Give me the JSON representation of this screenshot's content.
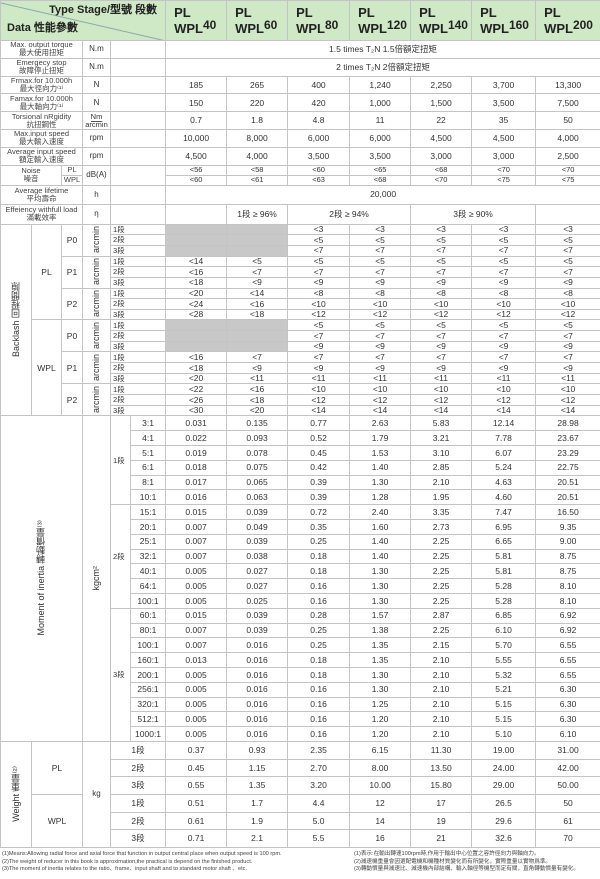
{
  "header": {
    "corner_top": "Type Stage/型號 段數",
    "corner_bottom": "Data 性能參數",
    "prefix_pl": "PL",
    "prefix_wpl": "WPL",
    "models": [
      "40",
      "60",
      "80",
      "120",
      "140",
      "160",
      "200"
    ],
    "bg_color": "#cfe8c6"
  },
  "specs": [
    {
      "en": "Max. output torque",
      "cn": "最大使用扭矩",
      "unit": "N.m",
      "span": "1.5 times T₂N      1.5倍額定扭矩"
    },
    {
      "en": "Emergecy stop",
      "cn": "故障停止扭矩",
      "unit": "N.m",
      "span": "2 times T₂N      2倍額定扭矩"
    },
    {
      "en": "Frmax.for 10.000h",
      "cn": "最大徑向力⁽¹⁾",
      "unit": "N",
      "values": [
        "185",
        "265",
        "400",
        "1,240",
        "2,250",
        "3,700",
        "13,300"
      ]
    },
    {
      "en": "Famax.for 10.000h",
      "cn": "最大軸向力⁽¹⁾",
      "unit": "N",
      "values": [
        "150",
        "220",
        "420",
        "1,000",
        "1,500",
        "3,500",
        "7,500"
      ]
    },
    {
      "en": "Torsional nRgidity",
      "cn": "抗扭鋼性",
      "unit": "Nm/arcmin",
      "values": [
        "0.7",
        "1.8",
        "4.8",
        "11",
        "22",
        "35",
        "50"
      ]
    },
    {
      "en": "Max.input speed",
      "cn": "最大輸入速度",
      "unit": "rpm",
      "values": [
        "10,000",
        "8,000",
        "6,000",
        "6,000",
        "4,500",
        "4,500",
        "4,000"
      ]
    },
    {
      "en": "Average input speed",
      "cn": "額定輸入速度",
      "unit": "rpm",
      "values": [
        "4,500",
        "4,000",
        "3,500",
        "3,500",
        "3,000",
        "3,000",
        "2,500"
      ]
    }
  ],
  "noise": {
    "en": "Noise",
    "cn": "噪音",
    "unit": "dB(A)",
    "rows": [
      {
        "type": "PL",
        "values": [
          "<56",
          "<58",
          "<60",
          "<65",
          "<68",
          "<70",
          "<70"
        ]
      },
      {
        "type": "WPL",
        "values": [
          "<60",
          "<61",
          "<63",
          "<68",
          "<70",
          "<75",
          "<75"
        ]
      }
    ]
  },
  "lifetime": {
    "en": "Average lifetime",
    "cn": "平均壽命",
    "unit": "h",
    "value": "20,000"
  },
  "efficiency": {
    "en": "Effeiency withfull load",
    "cn": "滿載效率",
    "unit": "η",
    "stage1": "1段 ≥ 96%",
    "stage2": "2段 ≥ 94%",
    "stage3": "3段 ≥ 90%"
  },
  "backlash": {
    "label": "Backlash  回程間隙",
    "unit": "arcmin",
    "stages": [
      "1段",
      "2段",
      "3段"
    ],
    "groups": [
      {
        "type": "PL",
        "precisions": [
          {
            "name": "P0",
            "rows": [
              [
                null,
                null,
                "<3",
                "<3",
                "<3",
                "<3",
                "<3"
              ],
              [
                null,
                null,
                "<5",
                "<5",
                "<5",
                "<5",
                "<5"
              ],
              [
                null,
                null,
                "<7",
                "<7",
                "<7",
                "<7",
                "<7"
              ]
            ]
          },
          {
            "name": "P1",
            "rows": [
              [
                "<14",
                "<5",
                "<5",
                "<5",
                "<5",
                "<5",
                "<5"
              ],
              [
                "<16",
                "<7",
                "<7",
                "<7",
                "<7",
                "<7",
                "<7"
              ],
              [
                "<18",
                "<9",
                "<9",
                "<9",
                "<9",
                "<9",
                "<9"
              ]
            ]
          },
          {
            "name": "P2",
            "rows": [
              [
                "<20",
                "<14",
                "<8",
                "<8",
                "<8",
                "<8",
                "<8"
              ],
              [
                "<24",
                "<16",
                "<10",
                "<10",
                "<10",
                "<10",
                "<10"
              ],
              [
                "<28",
                "<18",
                "<12",
                "<12",
                "<12",
                "<12",
                "<12"
              ]
            ]
          }
        ]
      },
      {
        "type": "WPL",
        "precisions": [
          {
            "name": "P0",
            "rows": [
              [
                null,
                null,
                "<5",
                "<5",
                "<5",
                "<5",
                "<5"
              ],
              [
                null,
                null,
                "<7",
                "<7",
                "<7",
                "<7",
                "<7"
              ],
              [
                null,
                null,
                "<9",
                "<9",
                "<9",
                "<9",
                "<9"
              ]
            ]
          },
          {
            "name": "P1",
            "rows": [
              [
                "<16",
                "<7",
                "<7",
                "<7",
                "<7",
                "<7",
                "<7"
              ],
              [
                "<18",
                "<9",
                "<9",
                "<9",
                "<9",
                "<9",
                "<9"
              ],
              [
                "<20",
                "<11",
                "<11",
                "<11",
                "<11",
                "<11",
                "<11"
              ]
            ]
          },
          {
            "name": "P2",
            "rows": [
              [
                "<22",
                "<16",
                "<10",
                "<10",
                "<10",
                "<10",
                "<10"
              ],
              [
                "<26",
                "<18",
                "<12",
                "<12",
                "<12",
                "<12",
                "<12"
              ],
              [
                "<30",
                "<20",
                "<14",
                "<14",
                "<14",
                "<14",
                "<14"
              ]
            ]
          }
        ]
      }
    ]
  },
  "inertia": {
    "label": "Moment of inertia  轉動慣量⁽³⁾",
    "unit": "kgcm²",
    "stages": [
      {
        "stage": "1段",
        "rows": [
          {
            "ratio": "3:1",
            "values": [
              "0.031",
              "0.135",
              "0.77",
              "2.63",
              "5.83",
              "12.14",
              "28.98"
            ]
          },
          {
            "ratio": "4:1",
            "values": [
              "0.022",
              "0.093",
              "0.52",
              "1.79",
              "3.21",
              "7.78",
              "23.67"
            ]
          },
          {
            "ratio": "5:1",
            "values": [
              "0.019",
              "0.078",
              "0.45",
              "1.53",
              "3.10",
              "6.07",
              "23.29"
            ]
          },
          {
            "ratio": "6:1",
            "values": [
              "0.018",
              "0.075",
              "0.42",
              "1.40",
              "2.85",
              "5.24",
              "22.75"
            ]
          },
          {
            "ratio": "8:1",
            "values": [
              "0.017",
              "0.065",
              "0.39",
              "1.30",
              "2.10",
              "4.63",
              "20.51"
            ]
          },
          {
            "ratio": "10:1",
            "values": [
              "0.016",
              "0.063",
              "0.39",
              "1.28",
              "1.95",
              "4.60",
              "20.51"
            ]
          }
        ]
      },
      {
        "stage": "2段",
        "rows": [
          {
            "ratio": "15:1",
            "values": [
              "0.015",
              "0.039",
              "0.72",
              "2.40",
              "3.35",
              "7.47",
              "16.50"
            ]
          },
          {
            "ratio": "20:1",
            "values": [
              "0.007",
              "0.049",
              "0.35",
              "1.60",
              "2.73",
              "6.95",
              "9.35"
            ]
          },
          {
            "ratio": "25:1",
            "values": [
              "0.007",
              "0.039",
              "0.25",
              "1.40",
              "2.25",
              "6.65",
              "9.00"
            ]
          },
          {
            "ratio": "32:1",
            "values": [
              "0.007",
              "0.038",
              "0.18",
              "1.40",
              "2.25",
              "5.81",
              "8.75"
            ]
          },
          {
            "ratio": "40:1",
            "values": [
              "0.005",
              "0.027",
              "0.18",
              "1.30",
              "2.25",
              "5.81",
              "8.75"
            ]
          },
          {
            "ratio": "64:1",
            "values": [
              "0.005",
              "0.027",
              "0.16",
              "1.30",
              "2.25",
              "5.28",
              "8.10"
            ]
          },
          {
            "ratio": "100:1",
            "values": [
              "0.005",
              "0.025",
              "0.16",
              "1.30",
              "2.25",
              "5.28",
              "8.10"
            ]
          }
        ]
      },
      {
        "stage": "3段",
        "rows": [
          {
            "ratio": "60:1",
            "values": [
              "0.015",
              "0.039",
              "0.28",
              "1.57",
              "2.87",
              "6.85",
              "6.92"
            ]
          },
          {
            "ratio": "80:1",
            "values": [
              "0.007",
              "0.039",
              "0.25",
              "1.38",
              "2.25",
              "6.10",
              "6.92"
            ]
          },
          {
            "ratio": "100:1",
            "values": [
              "0.007",
              "0.016",
              "0.25",
              "1.35",
              "2.15",
              "5.70",
              "6.55"
            ]
          },
          {
            "ratio": "160:1",
            "values": [
              "0.013",
              "0.016",
              "0.18",
              "1.35",
              "2.10",
              "5.55",
              "6.55"
            ]
          },
          {
            "ratio": "200:1",
            "values": [
              "0.005",
              "0.016",
              "0.18",
              "1.30",
              "2.10",
              "5.32",
              "6.55"
            ]
          },
          {
            "ratio": "256:1",
            "values": [
              "0.005",
              "0.016",
              "0.16",
              "1.30",
              "2.10",
              "5.21",
              "6.30"
            ]
          },
          {
            "ratio": "320:1",
            "values": [
              "0.005",
              "0.016",
              "0.16",
              "1.25",
              "2.10",
              "5.15",
              "6.30"
            ]
          },
          {
            "ratio": "512:1",
            "values": [
              "0.005",
              "0.016",
              "0.16",
              "1.20",
              "2.10",
              "5.15",
              "6.30"
            ]
          },
          {
            "ratio": "1000:1",
            "values": [
              "0.005",
              "0.016",
              "0.16",
              "1.20",
              "2.10",
              "5.10",
              "6.10"
            ]
          }
        ]
      }
    ]
  },
  "weight": {
    "label": "Weight  重量⁽²⁾",
    "unit": "kg",
    "groups": [
      {
        "type": "PL",
        "rows": [
          {
            "stage": "1段",
            "values": [
              "0.37",
              "0.93",
              "2.35",
              "6.15",
              "11.30",
              "19.00",
              "31.00"
            ]
          },
          {
            "stage": "2段",
            "values": [
              "0.45",
              "1.15",
              "2.70",
              "8.00",
              "13.50",
              "24.00",
              "42.00"
            ]
          },
          {
            "stage": "3段",
            "values": [
              "0.55",
              "1.35",
              "3.20",
              "10.00",
              "15.80",
              "29.00",
              "50.00"
            ]
          }
        ]
      },
      {
        "type": "WPL",
        "rows": [
          {
            "stage": "1段",
            "values": [
              "0.51",
              "1.7",
              "4.4",
              "12",
              "17",
              "26.5",
              "50"
            ]
          },
          {
            "stage": "2段",
            "values": [
              "0.61",
              "1.9",
              "5.0",
              "14",
              "19",
              "29.6",
              "61"
            ]
          },
          {
            "stage": "3段",
            "values": [
              "0.71",
              "2.1",
              "5.5",
              "16",
              "21",
              "32.6",
              "70"
            ]
          }
        ]
      }
    ]
  },
  "footnotes": {
    "en": [
      "(1)Means:Allowing radial force and axial force that function in output central place when output speed is 100 rpm.",
      "(2)The weight of reducer in this book is approximation,the practical is depend on the finished product.",
      "(3)The moment of inertia relates to the ratio、frame、input shaft and to standard motor shaft 、etc."
    ],
    "cn": [
      "(1)表示:在輸出轉速100rpm時,作用于輸出中心位置之容許徑向力與軸向力。",
      "(2)減速機重量會因選配電機和機種材質變化而有所變化，實際重量以實物爲準。",
      "(3)轉動慣量與減速比、減速機內部結構、輸入軸徑等機型而定有關，直角轉動慣量有變化。"
    ]
  }
}
